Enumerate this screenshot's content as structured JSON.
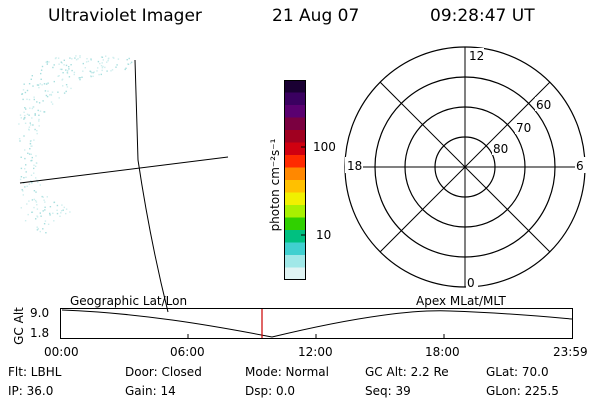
{
  "header": {
    "title": "Ultraviolet Imager",
    "date": "21 Aug 07",
    "time": "09:28:47 UT"
  },
  "colorbar": {
    "label": "photon cm⁻²s⁻¹",
    "ticks": [
      "100",
      "10"
    ],
    "colors": [
      "#1a0033",
      "#3a0060",
      "#5a0070",
      "#7a0040",
      "#a00020",
      "#d00010",
      "#ff2a00",
      "#ff8800",
      "#ffc000",
      "#f0f000",
      "#a8f000",
      "#30d000",
      "#00c080",
      "#40d0d0",
      "#a0e8e8",
      "#e0f4f4"
    ]
  },
  "polar": {
    "mlt_labels": [
      "12",
      "18",
      "6",
      "0"
    ],
    "lat_labels": [
      "60",
      "70",
      "80"
    ]
  },
  "timeline": {
    "ylabel": "GC Alt",
    "yticks": [
      "9.0",
      "1.8"
    ],
    "left_label": "Geographic Lat/Lon",
    "right_label": "Apex MLat/MLT",
    "xticks": [
      "00:00",
      "06:00",
      "12:00",
      "18:00",
      "23:59"
    ],
    "marker_color": "#cc0000"
  },
  "info": {
    "flt": "Flt: LBHL",
    "ip": "IP: 36.0",
    "door": "Door: Closed",
    "gain": "Gain: 14",
    "mode": "Mode: Normal",
    "dsp": "Dsp:      0.0",
    "gcalt": "GC Alt: 2.2 Re",
    "seq": "Seq: 39",
    "glat": "GLat:   70.0",
    "glon": "GLon: 225.5"
  }
}
